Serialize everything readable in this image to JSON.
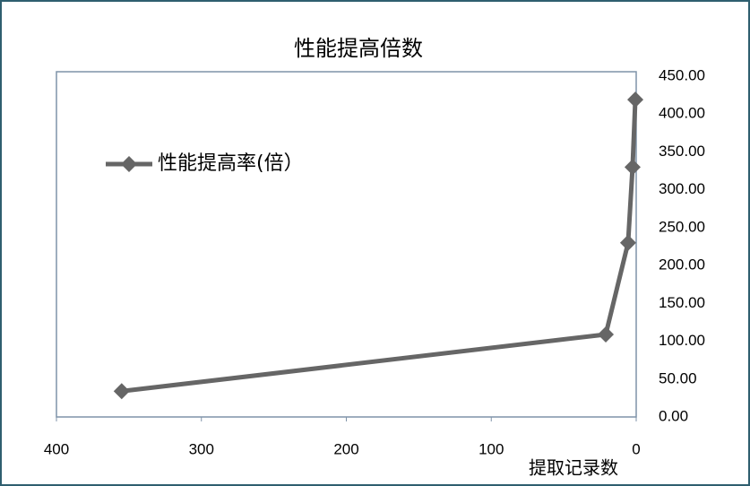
{
  "chart_data": {
    "type": "line",
    "title": "性能提高倍数",
    "x_label": "提取记录数",
    "x": [
      355,
      21,
      5.6,
      2.5,
      0.6
    ],
    "series": [
      {
        "name": "性能提高率(倍）",
        "color": "#666666",
        "values": [
          34,
          109,
          230,
          330,
          419
        ]
      }
    ],
    "xlim": [
      400,
      0
    ],
    "xticks": [
      400,
      300,
      200,
      100,
      0
    ],
    "ylim": [
      0,
      450
    ],
    "yticks": [
      {
        "value": 0,
        "label": "0.00"
      },
      {
        "value": 50,
        "label": "50.00"
      },
      {
        "value": 100,
        "label": "100.00"
      },
      {
        "value": 150,
        "label": "150.00"
      },
      {
        "value": 200,
        "label": "200.00"
      },
      {
        "value": 250,
        "label": "250.00"
      },
      {
        "value": 300,
        "label": "300.00"
      },
      {
        "value": 350,
        "label": "350.00"
      },
      {
        "value": 400,
        "label": "400.00"
      },
      {
        "value": 450,
        "label": "450.00"
      }
    ],
    "y_axis_side": "right",
    "legend": "left",
    "grid": false
  }
}
